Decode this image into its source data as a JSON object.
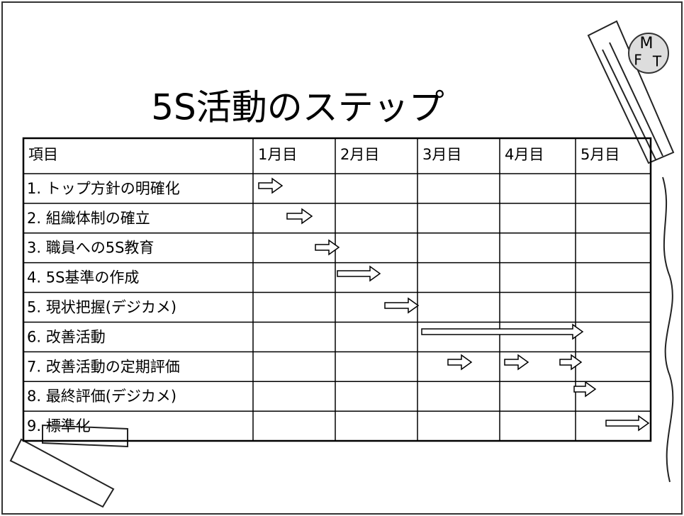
{
  "title": "5S活動のステップ",
  "logo": {
    "letters": [
      "M",
      "F",
      "T"
    ]
  },
  "table": {
    "header": [
      "項目",
      "1月目",
      "2月目",
      "3月目",
      "4月目",
      "5月目"
    ],
    "rows": [
      [
        "1. トップ方針の明確化"
      ],
      [
        "2. 組織体制の確立"
      ],
      [
        "3. 職員への5S教育"
      ],
      [
        "4. 5S基準の作成"
      ],
      [
        "5. 現状把握(デジカメ)"
      ],
      [
        "6. 改善活動"
      ],
      [
        "7. 改善活動の定期評価"
      ],
      [
        "8. 最終評価(デジカメ)"
      ],
      [
        "9. 標準化"
      ]
    ]
  }
}
